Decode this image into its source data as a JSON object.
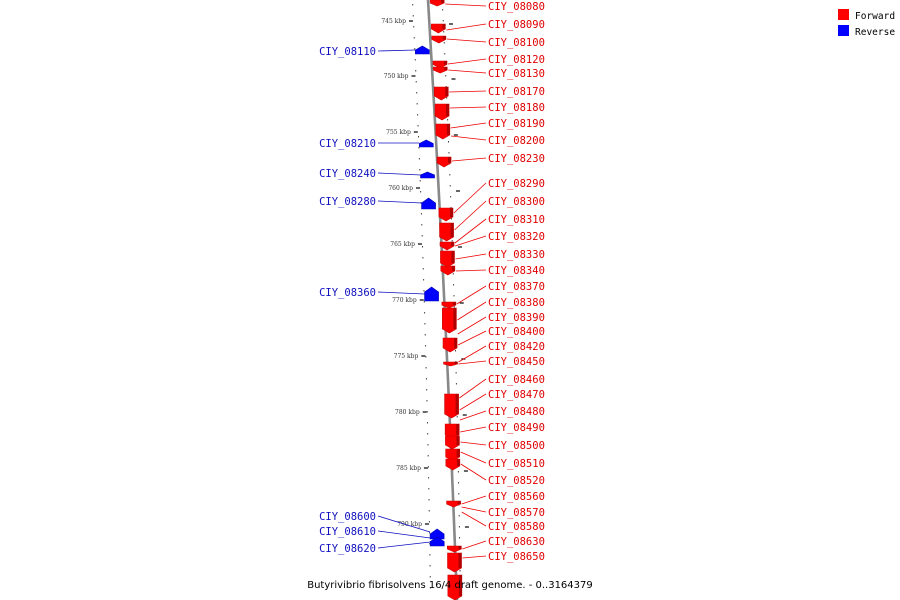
{
  "caption": "Butyrivibrio fibrisolvens 16/4 draft genome. - 0..3164379",
  "legend": {
    "forward_label": "Forward",
    "reverse_label": "Reverse",
    "forward_color": "#ff0000",
    "reverse_color": "#0000ff"
  },
  "colors": {
    "forward_text": "#e00000",
    "reverse_text": "#1010c0",
    "axis": "#888888"
  },
  "ticks": [
    "745 kbp",
    "750 kbp",
    "755 kbp",
    "760 kbp",
    "765 kbp",
    "770 kbp",
    "775 kbp",
    "780 kbp",
    "785 kbp",
    "790 kbp"
  ],
  "forward_genes": [
    "CIY_08080",
    "CIY_08090",
    "CIY_08100",
    "CIY_08120",
    "CIY_08130",
    "CIY_08170",
    "CIY_08180",
    "CIY_08190",
    "CIY_08200",
    "CIY_08230",
    "CIY_08290",
    "CIY_08300",
    "CIY_08310",
    "CIY_08320",
    "CIY_08330",
    "CIY_08340",
    "CIY_08370",
    "CIY_08380",
    "CIY_08390",
    "CIY_08400",
    "CIY_08420",
    "CIY_08450",
    "CIY_08460",
    "CIY_08470",
    "CIY_08480",
    "CIY_08490",
    "CIY_08500",
    "CIY_08510",
    "CIY_08520",
    "CIY_08560",
    "CIY_08570",
    "CIY_08580",
    "CIY_08630",
    "CIY_08650"
  ],
  "reverse_genes": [
    "CIY_08110",
    "CIY_08210",
    "CIY_08240",
    "CIY_08280",
    "CIY_08360",
    "CIY_08600",
    "CIY_08610",
    "CIY_08620"
  ]
}
